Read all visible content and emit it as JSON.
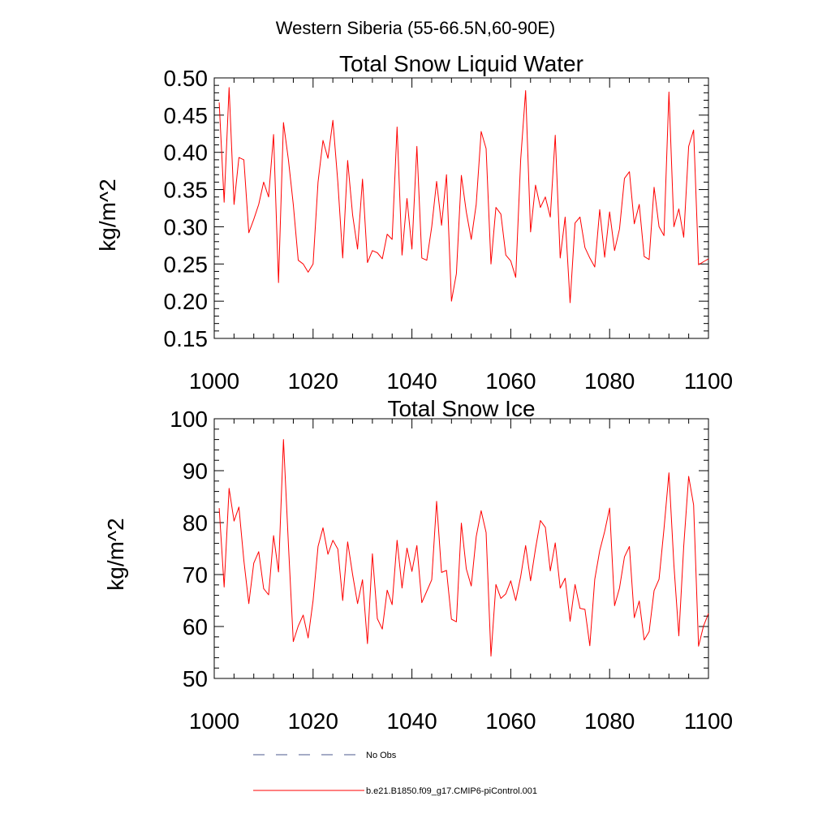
{
  "figure": {
    "suptitle": "Western Siberia (55-66.5N,60-90E)"
  },
  "chart_data": [
    {
      "type": "line",
      "title": "Total Snow Liquid Water",
      "xlabel": "",
      "ylabel": "kg/m^2",
      "xlim": [
        1000,
        1100
      ],
      "ylim": [
        0.15,
        0.5
      ],
      "xticks": [
        1000,
        1020,
        1040,
        1060,
        1080,
        1100
      ],
      "xtick_labels": [
        "1000",
        "1020",
        "1040",
        "1060",
        "1080",
        "1100"
      ],
      "yticks": [
        0.15,
        0.2,
        0.25,
        0.3,
        0.35,
        0.4,
        0.45,
        0.5
      ],
      "ytick_labels": [
        "0.15",
        "0.20",
        "0.25",
        "0.30",
        "0.35",
        "0.40",
        "0.45",
        "0.50"
      ],
      "grid": false,
      "x_start": 1001,
      "series": [
        {
          "name": "b.e21.B1850.f09_g17.CMIP6-piControl.001",
          "color": "#ff0000",
          "values": [
            0.467,
            0.333,
            0.487,
            0.33,
            0.393,
            0.39,
            0.292,
            0.31,
            0.33,
            0.36,
            0.34,
            0.424,
            0.225,
            0.44,
            0.39,
            0.33,
            0.255,
            0.25,
            0.239,
            0.25,
            0.36,
            0.416,
            0.392,
            0.443,
            0.36,
            0.258,
            0.389,
            0.316,
            0.27,
            0.364,
            0.252,
            0.268,
            0.265,
            0.257,
            0.29,
            0.283,
            0.434,
            0.262,
            0.338,
            0.27,
            0.408,
            0.258,
            0.255,
            0.3,
            0.361,
            0.302,
            0.37,
            0.2,
            0.237,
            0.369,
            0.32,
            0.283,
            0.33,
            0.428,
            0.405,
            0.25,
            0.326,
            0.317,
            0.262,
            0.254,
            0.232,
            0.39,
            0.483,
            0.293,
            0.356,
            0.326,
            0.34,
            0.313,
            0.423,
            0.258,
            0.313,
            0.198,
            0.305,
            0.313,
            0.272,
            0.258,
            0.246,
            0.323,
            0.259,
            0.32,
            0.268,
            0.297,
            0.365,
            0.374,
            0.304,
            0.33,
            0.26,
            0.256,
            0.353,
            0.3,
            0.288,
            0.481,
            0.3,
            0.324,
            0.286,
            0.408,
            0.43,
            0.249,
            0.253,
            0.257
          ]
        }
      ]
    },
    {
      "type": "line",
      "title": "Total Snow Ice",
      "xlabel": "",
      "ylabel": "kg/m^2",
      "xlim": [
        1000,
        1100
      ],
      "ylim": [
        50,
        100
      ],
      "xticks": [
        1000,
        1020,
        1040,
        1060,
        1080,
        1100
      ],
      "xtick_labels": [
        "1000",
        "1020",
        "1040",
        "1060",
        "1080",
        "1100"
      ],
      "yticks": [
        50,
        60,
        70,
        80,
        90,
        100
      ],
      "ytick_labels": [
        "50",
        "60",
        "70",
        "80",
        "90",
        "100"
      ],
      "grid": false,
      "x_start": 1001,
      "series": [
        {
          "name": "b.e21.B1850.f09_g17.CMIP6-piControl.001",
          "color": "#ff0000",
          "values": [
            82.8,
            67.6,
            86.6,
            80.3,
            83.0,
            72.7,
            64.4,
            72.2,
            74.4,
            67.3,
            66.1,
            77.5,
            70.5,
            96.0,
            75.8,
            57.1,
            60.1,
            62.2,
            57.8,
            65.0,
            75.4,
            79.0,
            73.9,
            76.6,
            74.9,
            65.0,
            76.3,
            70.0,
            64.4,
            69.0,
            56.7,
            74.0,
            61.5,
            59.5,
            67.0,
            64.2,
            76.6,
            67.4,
            75.1,
            70.6,
            75.6,
            64.6,
            66.8,
            69.0,
            84.1,
            70.4,
            70.8,
            61.4,
            60.9,
            79.9,
            71.1,
            67.8,
            77.3,
            82.3,
            78.1,
            54.3,
            68.1,
            65.4,
            66.3,
            68.8,
            65.0,
            69.6,
            75.6,
            68.8,
            75.0,
            80.4,
            79.1,
            70.7,
            76.1,
            67.4,
            69.3,
            61.0,
            68.1,
            63.5,
            63.3,
            56.3,
            69.1,
            74.6,
            78.3,
            82.8,
            64.0,
            67.4,
            73.4,
            75.4,
            61.7,
            64.9,
            57.4,
            59.0,
            66.9,
            69.1,
            78.8,
            89.6,
            71.9,
            58.2,
            75.4,
            88.9,
            83.4,
            56.2,
            60.1,
            62.5
          ]
        }
      ]
    }
  ],
  "legend": {
    "placement": "bottom",
    "items": [
      {
        "label": "No Obs",
        "color": "#4b5a8c",
        "style": "dashed"
      },
      {
        "label": "b.e21.B1850.f09_g17.CMIP6-piControl.001",
        "color": "#ff0000",
        "style": "solid"
      }
    ]
  }
}
